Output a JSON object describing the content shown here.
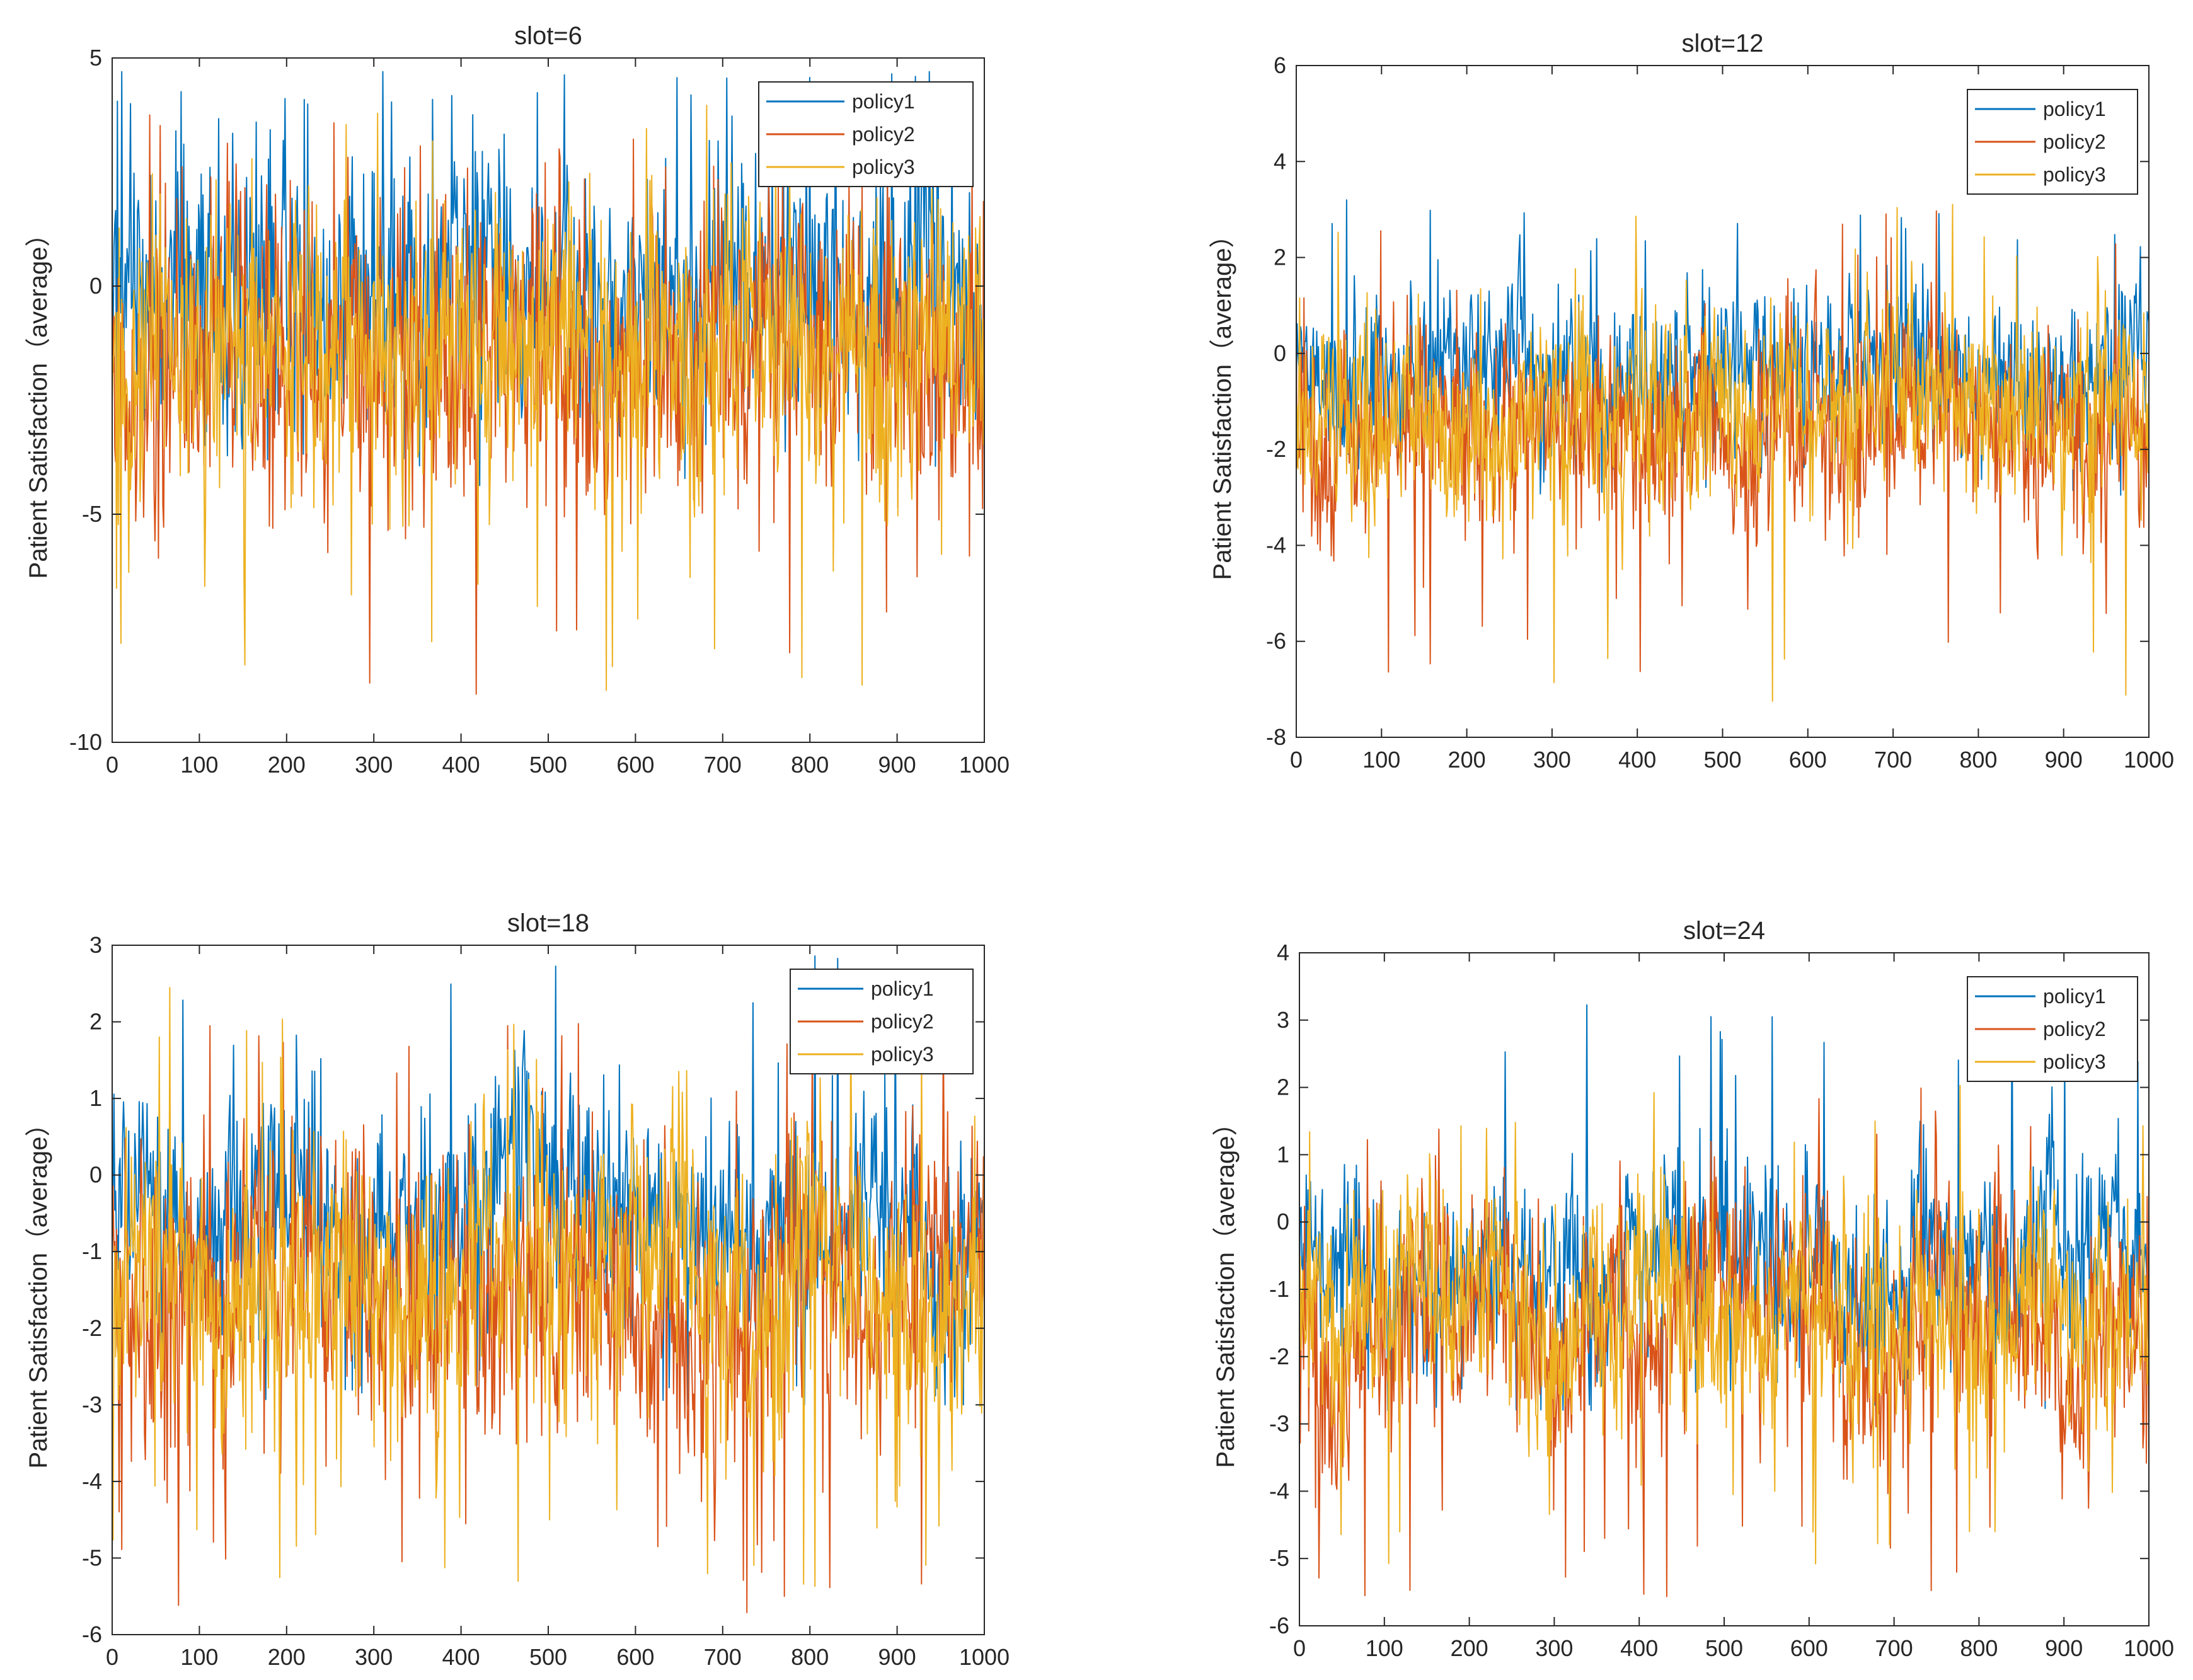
{
  "figure": {
    "title": ""
  },
  "chart_data": [
    {
      "type": "line",
      "title": "slot=6",
      "xlabel": "",
      "ylabel": "Patient Satisfaction（average）",
      "xlim": [
        0,
        1000
      ],
      "ylim": [
        -10,
        5
      ],
      "xticks": [
        0,
        100,
        200,
        300,
        400,
        500,
        600,
        700,
        800,
        900,
        1000
      ],
      "yticks": [
        -10,
        -5,
        0,
        5
      ],
      "grid": false,
      "legend_position": "top-right",
      "series": [
        {
          "name": "policy1",
          "color": "#0072BD",
          "points": 1000,
          "base": 0.0,
          "noise": 1.6,
          "min": -4.5,
          "max": 4.7
        },
        {
          "name": "policy2",
          "color": "#D95319",
          "points": 1000,
          "base": -1.7,
          "noise": 1.8,
          "min": -9.0,
          "max": 3.8
        },
        {
          "name": "policy3",
          "color": "#EDB120",
          "points": 1000,
          "base": -1.4,
          "noise": 1.8,
          "min": -9.0,
          "max": 4.0
        }
      ]
    },
    {
      "type": "line",
      "title": "slot=12",
      "xlabel": "",
      "ylabel": "Patient Satisfaction（average）",
      "xlim": [
        0,
        1000
      ],
      "ylim": [
        -8,
        6
      ],
      "xticks": [
        0,
        100,
        200,
        300,
        400,
        500,
        600,
        700,
        800,
        900,
        1000
      ],
      "yticks": [
        -8,
        -6,
        -4,
        -2,
        0,
        2,
        4,
        6
      ],
      "grid": false,
      "legend_position": "top-right",
      "series": [
        {
          "name": "policy1",
          "color": "#0072BD",
          "points": 1000,
          "base": -0.4,
          "noise": 0.9,
          "min": -3.0,
          "max": 3.2
        },
        {
          "name": "policy2",
          "color": "#D95319",
          "points": 1000,
          "base": -1.5,
          "noise": 1.1,
          "min": -6.8,
          "max": 3.0
        },
        {
          "name": "policy3",
          "color": "#EDB120",
          "points": 1000,
          "base": -1.3,
          "noise": 1.1,
          "min": -7.3,
          "max": 3.3
        }
      ]
    },
    {
      "type": "line",
      "title": "slot=18",
      "xlabel": "",
      "ylabel": "Patient Satisfaction（average）",
      "xlim": [
        0,
        1000
      ],
      "ylim": [
        -6,
        3
      ],
      "xticks": [
        0,
        100,
        200,
        300,
        400,
        500,
        600,
        700,
        800,
        900,
        1000
      ],
      "yticks": [
        -6,
        -5,
        -4,
        -3,
        -2,
        -1,
        0,
        1,
        2,
        3
      ],
      "grid": false,
      "legend_position": "top-right",
      "series": [
        {
          "name": "policy1",
          "color": "#0072BD",
          "points": 1000,
          "base": -0.6,
          "noise": 0.8,
          "min": -3.0,
          "max": 2.9
        },
        {
          "name": "policy2",
          "color": "#D95319",
          "points": 1000,
          "base": -1.6,
          "noise": 1.0,
          "min": -5.9,
          "max": 2.0
        },
        {
          "name": "policy3",
          "color": "#EDB120",
          "points": 1000,
          "base": -1.4,
          "noise": 1.0,
          "min": -5.4,
          "max": 2.5
        }
      ]
    },
    {
      "type": "line",
      "title": "slot=24",
      "xlabel": "",
      "ylabel": "Patient Satisfaction（average）",
      "xlim": [
        0,
        1000
      ],
      "ylim": [
        -6,
        4
      ],
      "xticks": [
        0,
        100,
        200,
        300,
        400,
        500,
        600,
        700,
        800,
        900,
        1000
      ],
      "yticks": [
        -6,
        -5,
        -4,
        -3,
        -2,
        -1,
        0,
        1,
        2,
        3,
        4
      ],
      "grid": false,
      "legend_position": "top-right",
      "series": [
        {
          "name": "policy1",
          "color": "#0072BD",
          "points": 1000,
          "base": -0.5,
          "noise": 0.7,
          "min": -2.8,
          "max": 3.3
        },
        {
          "name": "policy2",
          "color": "#D95319",
          "points": 1000,
          "base": -1.6,
          "noise": 0.9,
          "min": -5.7,
          "max": 2.0
        },
        {
          "name": "policy3",
          "color": "#EDB120",
          "points": 1000,
          "base": -1.4,
          "noise": 0.9,
          "min": -5.1,
          "max": 2.4
        }
      ]
    }
  ]
}
